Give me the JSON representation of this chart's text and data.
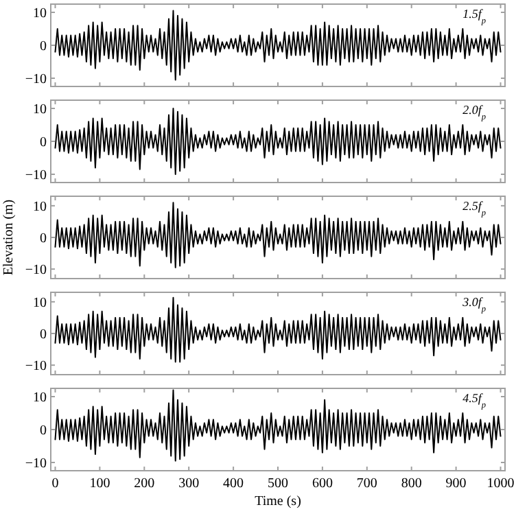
{
  "chart_data": [
    {
      "type": "line",
      "annotations": [
        "1.5f$_{p}$"
      ],
      "color": "#000000",
      "xlim": [
        -10,
        1010
      ],
      "ylim": [
        -12.5,
        12.5
      ],
      "xticks": [
        0,
        100,
        200,
        300,
        400,
        500,
        600,
        700,
        800,
        900,
        1000
      ],
      "yticks": [
        -10,
        0,
        10
      ],
      "tick_labels": "y",
      "x": [
        0,
        5,
        10,
        15,
        20,
        25,
        30,
        35,
        40,
        45,
        50,
        55,
        60,
        65,
        70,
        75,
        80,
        85,
        90,
        95,
        100,
        105,
        110,
        115,
        120,
        125,
        130,
        135,
        140,
        145,
        150,
        155,
        160,
        165,
        170,
        175,
        180,
        185,
        190,
        195,
        200,
        205,
        210,
        215,
        220,
        225,
        230,
        235,
        240,
        245,
        250,
        255,
        260,
        265,
        270,
        275,
        280,
        285,
        290,
        295,
        300,
        305,
        310,
        315,
        320,
        325,
        330,
        335,
        340,
        345,
        350,
        355,
        360,
        365,
        370,
        375,
        380,
        385,
        390,
        395,
        400,
        405,
        410,
        415,
        420,
        425,
        430,
        435,
        440,
        445,
        450,
        455,
        460,
        465,
        470,
        475,
        480,
        485,
        490,
        495,
        500,
        505,
        510,
        515,
        520,
        525,
        530,
        535,
        540,
        545,
        550,
        555,
        560,
        565,
        570,
        575,
        580,
        585,
        590,
        595,
        600,
        605,
        610,
        615,
        620,
        625,
        630,
        635,
        640,
        645,
        650,
        655,
        660,
        665,
        670,
        675,
        680,
        685,
        690,
        695,
        700,
        705,
        710,
        715,
        720,
        725,
        730,
        735,
        740,
        745,
        750,
        755,
        760,
        765,
        770,
        775,
        780,
        785,
        790,
        795,
        800,
        805,
        810,
        815,
        820,
        825,
        830,
        835,
        840,
        845,
        850,
        855,
        860,
        865,
        870,
        875,
        880,
        885,
        890,
        895,
        900,
        905,
        910,
        915,
        920,
        925,
        930,
        935,
        940,
        945,
        950,
        955,
        960,
        965,
        970,
        975,
        980,
        985,
        990,
        995,
        1000
      ],
      "values": [
        -2,
        5,
        -3,
        3,
        -3,
        3,
        -3.5,
        3,
        -3,
        3,
        -3.5,
        3.5,
        -3,
        4,
        -5,
        6,
        -6,
        7,
        -7,
        6,
        -5,
        7,
        -3,
        4,
        -4,
        4,
        -4,
        5,
        -5,
        5,
        -4,
        5,
        -5,
        4,
        -6,
        6,
        -6,
        6,
        -7.5,
        5,
        -4,
        3,
        -2,
        3,
        -2,
        2,
        -3,
        5,
        -4,
        4,
        -6,
        8,
        -8,
        10.5,
        -10.5,
        9,
        -9,
        8,
        -7,
        7,
        -5,
        4,
        -3,
        2,
        -2,
        1,
        -2,
        2,
        -1,
        3,
        -2,
        3,
        -3,
        2,
        -2,
        1,
        -1,
        1,
        -1,
        2,
        -1,
        2,
        -2,
        3,
        -2,
        1,
        -3,
        3,
        -3,
        2,
        -2,
        1,
        -1,
        4,
        -5,
        3,
        -3,
        5,
        -4,
        3,
        -2,
        1,
        -2,
        4,
        -4,
        3,
        -3,
        4,
        -3,
        4,
        -3,
        4,
        -3,
        3,
        -2,
        6,
        -5,
        6,
        -6,
        5,
        -6,
        7,
        -6,
        6,
        -4,
        5,
        -5,
        6,
        -6,
        5,
        -4,
        5,
        -5,
        6,
        -5,
        5,
        -4,
        5,
        -5,
        5,
        -4,
        5,
        -6,
        5,
        -4,
        6,
        -5,
        4,
        -3,
        3,
        -2,
        2,
        -1,
        2,
        -2,
        2,
        -2,
        3,
        -2,
        2,
        -3,
        3,
        -2,
        3,
        -3,
        4,
        -4,
        4,
        -3,
        5,
        -5,
        5,
        -4,
        4,
        -3,
        3,
        -3,
        5,
        -4,
        2,
        -2,
        3,
        -2,
        5,
        -4,
        3,
        -3,
        2,
        -1,
        2,
        -2,
        3,
        -3,
        2,
        -1,
        2,
        -5,
        4,
        -3,
        4,
        -2
      ]
    },
    {
      "type": "line",
      "annotations": [
        "2.0f$_{p}$"
      ],
      "color": "#000000",
      "xlim": [
        -10,
        1010
      ],
      "ylim": [
        -12.5,
        12.5
      ],
      "xticks": [
        0,
        100,
        200,
        300,
        400,
        500,
        600,
        700,
        800,
        900,
        1000
      ],
      "yticks": [
        -10,
        0,
        10
      ],
      "tick_labels": "y",
      "x": [
        0,
        5,
        10,
        15,
        20,
        25,
        30,
        35,
        40,
        45,
        50,
        55,
        60,
        65,
        70,
        75,
        80,
        85,
        90,
        95,
        100,
        105,
        110,
        115,
        120,
        125,
        130,
        135,
        140,
        145,
        150,
        155,
        160,
        165,
        170,
        175,
        180,
        185,
        190,
        195,
        200,
        205,
        210,
        215,
        220,
        225,
        230,
        235,
        240,
        245,
        250,
        255,
        260,
        265,
        270,
        275,
        280,
        285,
        290,
        295,
        300,
        305,
        310,
        315,
        320,
        325,
        330,
        335,
        340,
        345,
        350,
        355,
        360,
        365,
        370,
        375,
        380,
        385,
        390,
        395,
        400,
        405,
        410,
        415,
        420,
        425,
        430,
        435,
        440,
        445,
        450,
        455,
        460,
        465,
        470,
        475,
        480,
        485,
        490,
        495,
        500,
        505,
        510,
        515,
        520,
        525,
        530,
        535,
        540,
        545,
        550,
        555,
        560,
        565,
        570,
        575,
        580,
        585,
        590,
        595,
        600,
        605,
        610,
        615,
        620,
        625,
        630,
        635,
        640,
        645,
        650,
        655,
        660,
        665,
        670,
        675,
        680,
        685,
        690,
        695,
        700,
        705,
        710,
        715,
        720,
        725,
        730,
        735,
        740,
        745,
        750,
        755,
        760,
        765,
        770,
        775,
        780,
        785,
        790,
        795,
        800,
        805,
        810,
        815,
        820,
        825,
        830,
        835,
        840,
        845,
        850,
        855,
        860,
        865,
        870,
        875,
        880,
        885,
        890,
        895,
        900,
        905,
        910,
        915,
        920,
        925,
        930,
        935,
        940,
        945,
        950,
        955,
        960,
        965,
        970,
        975,
        980,
        985,
        990,
        995,
        1000
      ],
      "values": [
        -2,
        5,
        -3,
        3,
        -3,
        3,
        -3.5,
        3,
        -3,
        3,
        -3.5,
        3.5,
        -3,
        4,
        -5,
        6,
        -6,
        7,
        -8,
        6,
        -5,
        7,
        -3,
        4,
        -4,
        4,
        -4,
        5,
        -5,
        5,
        -4,
        5,
        -5,
        4,
        -6,
        6,
        -6,
        6,
        -8.5,
        5,
        -4,
        3,
        -2,
        3,
        -2,
        2,
        -3,
        5,
        -4,
        4,
        -6,
        8,
        -8,
        10,
        -10,
        9,
        -9,
        8,
        -8,
        7,
        -5,
        4,
        -3,
        2,
        -2,
        1,
        -2,
        2,
        -1,
        3,
        -2,
        3,
        -3,
        2,
        -2,
        1,
        -1,
        1,
        -1,
        2,
        -1,
        2,
        -2,
        3,
        -2,
        1,
        -3,
        3,
        -3,
        2,
        -2,
        1,
        -1,
        4,
        -5,
        3,
        -3,
        5,
        -4,
        3,
        -2,
        1,
        -2,
        4,
        -4,
        3,
        -3,
        4,
        -3,
        4,
        -3,
        4,
        -3,
        3,
        -2,
        6,
        -5,
        6,
        -6,
        5,
        -7,
        7,
        -6,
        6,
        -4,
        5,
        -5,
        6,
        -6,
        5,
        -4,
        5,
        -5,
        6,
        -5,
        5,
        -4,
        5,
        -5,
        5,
        -4,
        5,
        -6,
        5,
        -4,
        6,
        -5,
        4,
        -3,
        3,
        -2,
        2,
        -1,
        2,
        -2,
        2,
        -2,
        3,
        -2,
        2,
        -3,
        3,
        -2,
        3,
        -3,
        4,
        -4,
        4,
        -3,
        5,
        -6,
        5,
        -4,
        4,
        -3,
        3,
        -3,
        5,
        -4,
        2,
        -2,
        3,
        -2,
        5,
        -4,
        3,
        -3,
        2,
        -1,
        2,
        -2,
        3,
        -3,
        2,
        -1,
        2,
        -5,
        4,
        -3,
        4,
        -2
      ]
    },
    {
      "type": "line",
      "annotations": [
        "2.5f$_{p}$"
      ],
      "ylabel": "Elevation (m)",
      "color": "#000000",
      "xlim": [
        -10,
        1010
      ],
      "ylim": [
        -13,
        13
      ],
      "xticks": [
        0,
        100,
        200,
        300,
        400,
        500,
        600,
        700,
        800,
        900,
        1000
      ],
      "yticks": [
        -10,
        0,
        10
      ],
      "tick_labels": "y",
      "x": [
        0,
        5,
        10,
        15,
        20,
        25,
        30,
        35,
        40,
        45,
        50,
        55,
        60,
        65,
        70,
        75,
        80,
        85,
        90,
        95,
        100,
        105,
        110,
        115,
        120,
        125,
        130,
        135,
        140,
        145,
        150,
        155,
        160,
        165,
        170,
        175,
        180,
        185,
        190,
        195,
        200,
        205,
        210,
        215,
        220,
        225,
        230,
        235,
        240,
        245,
        250,
        255,
        260,
        265,
        270,
        275,
        280,
        285,
        290,
        295,
        300,
        305,
        310,
        315,
        320,
        325,
        330,
        335,
        340,
        345,
        350,
        355,
        360,
        365,
        370,
        375,
        380,
        385,
        390,
        395,
        400,
        405,
        410,
        415,
        420,
        425,
        430,
        435,
        440,
        445,
        450,
        455,
        460,
        465,
        470,
        475,
        480,
        485,
        490,
        495,
        500,
        505,
        510,
        515,
        520,
        525,
        530,
        535,
        540,
        545,
        550,
        555,
        560,
        565,
        570,
        575,
        580,
        585,
        590,
        595,
        600,
        605,
        610,
        615,
        620,
        625,
        630,
        635,
        640,
        645,
        650,
        655,
        660,
        665,
        670,
        675,
        680,
        685,
        690,
        695,
        700,
        705,
        710,
        715,
        720,
        725,
        730,
        735,
        740,
        745,
        750,
        755,
        760,
        765,
        770,
        775,
        780,
        785,
        790,
        795,
        800,
        805,
        810,
        815,
        820,
        825,
        830,
        835,
        840,
        845,
        850,
        855,
        860,
        865,
        870,
        875,
        880,
        885,
        890,
        895,
        900,
        905,
        910,
        915,
        920,
        925,
        930,
        935,
        940,
        945,
        950,
        955,
        960,
        965,
        970,
        975,
        980,
        985,
        990,
        995,
        1000
      ],
      "values": [
        -3,
        5.5,
        -3,
        3,
        -3,
        3,
        -3.5,
        3,
        -3,
        3,
        -3.5,
        3.5,
        -3,
        4,
        -5,
        6,
        -6,
        7,
        -8,
        6,
        -5,
        7,
        -3,
        4,
        -4,
        4,
        -4,
        5,
        -5,
        5,
        -4,
        5,
        -5,
        4,
        -6,
        6,
        -6,
        6,
        -9,
        5,
        -4,
        3,
        -2,
        3,
        -2,
        2,
        -3,
        5,
        -4,
        4,
        -6,
        8,
        -8,
        11,
        -9.5,
        9,
        -9,
        8,
        -8,
        7,
        -5,
        4,
        -3,
        2,
        -2,
        1,
        -2,
        2,
        -1,
        3,
        -2,
        3,
        -3,
        2,
        -2,
        1,
        -1,
        1,
        -1,
        2,
        -1,
        2,
        -2,
        3,
        -2,
        1,
        -3,
        3,
        -3,
        2,
        -2,
        1,
        -1,
        4,
        -6,
        3,
        -3,
        5,
        -4,
        3,
        -2,
        1,
        -2,
        4,
        -4,
        3,
        -3,
        4,
        -3,
        4,
        -3,
        4,
        -3,
        3,
        -2,
        6,
        -5,
        6,
        -6,
        5,
        -8,
        7,
        -6,
        6,
        -4,
        5,
        -5,
        6,
        -6,
        5,
        -4,
        5,
        -5,
        6,
        -5,
        5,
        -4,
        5,
        -5,
        5,
        -4,
        5,
        -6,
        5,
        -4,
        6,
        -5,
        4,
        -3,
        3,
        -2,
        2,
        -1,
        2,
        -2,
        2,
        -2,
        3,
        -2,
        2,
        -3,
        3,
        -2,
        3,
        -3,
        4,
        -4,
        4,
        -3,
        5,
        -7,
        5,
        -4,
        4,
        -3,
        3,
        -3,
        5,
        -4,
        2,
        -2,
        3,
        -2,
        5,
        -4,
        3,
        -3,
        2,
        -1,
        2,
        -2,
        3,
        -3,
        2,
        -1,
        2,
        -5.5,
        4,
        -3,
        4,
        -2
      ]
    },
    {
      "type": "line",
      "annotations": [
        "3.0f$_{p}$"
      ],
      "color": "#000000",
      "xlim": [
        -10,
        1010
      ],
      "ylim": [
        -13,
        13
      ],
      "xticks": [
        0,
        100,
        200,
        300,
        400,
        500,
        600,
        700,
        800,
        900,
        1000
      ],
      "yticks": [
        -10,
        0,
        10
      ],
      "tick_labels": "y",
      "x": [
        0,
        5,
        10,
        15,
        20,
        25,
        30,
        35,
        40,
        45,
        50,
        55,
        60,
        65,
        70,
        75,
        80,
        85,
        90,
        95,
        100,
        105,
        110,
        115,
        120,
        125,
        130,
        135,
        140,
        145,
        150,
        155,
        160,
        165,
        170,
        175,
        180,
        185,
        190,
        195,
        200,
        205,
        210,
        215,
        220,
        225,
        230,
        235,
        240,
        245,
        250,
        255,
        260,
        265,
        270,
        275,
        280,
        285,
        290,
        295,
        300,
        305,
        310,
        315,
        320,
        325,
        330,
        335,
        340,
        345,
        350,
        355,
        360,
        365,
        370,
        375,
        380,
        385,
        390,
        395,
        400,
        405,
        410,
        415,
        420,
        425,
        430,
        435,
        440,
        445,
        450,
        455,
        460,
        465,
        470,
        475,
        480,
        485,
        490,
        495,
        500,
        505,
        510,
        515,
        520,
        525,
        530,
        535,
        540,
        545,
        550,
        555,
        560,
        565,
        570,
        575,
        580,
        585,
        590,
        595,
        600,
        605,
        610,
        615,
        620,
        625,
        630,
        635,
        640,
        645,
        650,
        655,
        660,
        665,
        670,
        675,
        680,
        685,
        690,
        695,
        700,
        705,
        710,
        715,
        720,
        725,
        730,
        735,
        740,
        745,
        750,
        755,
        760,
        765,
        770,
        775,
        780,
        785,
        790,
        795,
        800,
        805,
        810,
        815,
        820,
        825,
        830,
        835,
        840,
        845,
        850,
        855,
        860,
        865,
        870,
        875,
        880,
        885,
        890,
        895,
        900,
        905,
        910,
        915,
        920,
        925,
        930,
        935,
        940,
        945,
        950,
        955,
        960,
        965,
        970,
        975,
        980,
        985,
        990,
        995,
        1000
      ],
      "values": [
        -3,
        5.5,
        -3,
        3,
        -3,
        3,
        -3.5,
        3,
        -3,
        3,
        -3.5,
        3.5,
        -3,
        4,
        -5,
        6,
        -6,
        7,
        -7.5,
        6,
        -5,
        7,
        -3,
        4,
        -4,
        4,
        -4,
        5,
        -5,
        5,
        -4,
        5,
        -5,
        4,
        -6,
        6,
        -6,
        6,
        -8,
        5,
        -4,
        3,
        -2,
        3,
        -2,
        2,
        -3,
        5,
        -4,
        4,
        -6,
        8,
        -8,
        11.3,
        -9,
        9,
        -9,
        8,
        -8,
        7,
        -5,
        4,
        -3,
        2,
        -2,
        1,
        -2,
        2,
        -1,
        3,
        -2,
        3,
        -3,
        2,
        -2,
        1,
        -1,
        1,
        -1,
        2,
        -1,
        2,
        -2,
        3,
        -2,
        1,
        -3,
        3,
        -3,
        2,
        -2,
        1,
        -1,
        4,
        -6,
        3,
        -3,
        5,
        -4,
        3,
        -2,
        1,
        -2,
        4,
        -4,
        3,
        -3,
        4,
        -3,
        4,
        -3,
        4,
        -3,
        3,
        -2,
        6,
        -5,
        6,
        -6,
        5,
        -8,
        7,
        -6,
        6,
        -4,
        5,
        -5,
        6,
        -6,
        5,
        -4,
        5,
        -5,
        6,
        -5,
        5,
        -4,
        5,
        -5,
        5,
        -4,
        5,
        -6,
        5,
        -4,
        6,
        -5,
        4,
        -3,
        3,
        -2,
        2,
        -1,
        2,
        -2,
        2,
        -2,
        3,
        -2,
        2,
        -3,
        3,
        -2,
        3,
        -3,
        4,
        -4,
        4,
        -3,
        5,
        -7,
        5,
        -4,
        4,
        -3,
        3,
        -3,
        5,
        -4,
        2,
        -2,
        3,
        -2,
        5,
        -4,
        3,
        -3,
        2,
        -1,
        2,
        -2,
        3,
        -3,
        2,
        -1,
        2,
        -5.5,
        4,
        -3,
        4,
        -2
      ]
    },
    {
      "type": "line",
      "annotations": [
        "4.5f$_{p}$"
      ],
      "xlabel": "Time (s)",
      "color": "#000000",
      "xlim": [
        -10,
        1010
      ],
      "ylim": [
        -12.5,
        12.5
      ],
      "xticks": [
        0,
        100,
        200,
        300,
        400,
        500,
        600,
        700,
        800,
        900,
        1000
      ],
      "yticks": [
        -10,
        0,
        10
      ],
      "x": [
        0,
        5,
        10,
        15,
        20,
        25,
        30,
        35,
        40,
        45,
        50,
        55,
        60,
        65,
        70,
        75,
        80,
        85,
        90,
        95,
        100,
        105,
        110,
        115,
        120,
        125,
        130,
        135,
        140,
        145,
        150,
        155,
        160,
        165,
        170,
        175,
        180,
        185,
        190,
        195,
        200,
        205,
        210,
        215,
        220,
        225,
        230,
        235,
        240,
        245,
        250,
        255,
        260,
        265,
        270,
        275,
        280,
        285,
        290,
        295,
        300,
        305,
        310,
        315,
        320,
        325,
        330,
        335,
        340,
        345,
        350,
        355,
        360,
        365,
        370,
        375,
        380,
        385,
        390,
        395,
        400,
        405,
        410,
        415,
        420,
        425,
        430,
        435,
        440,
        445,
        450,
        455,
        460,
        465,
        470,
        475,
        480,
        485,
        490,
        495,
        500,
        505,
        510,
        515,
        520,
        525,
        530,
        535,
        540,
        545,
        550,
        555,
        560,
        565,
        570,
        575,
        580,
        585,
        590,
        595,
        600,
        605,
        610,
        615,
        620,
        625,
        630,
        635,
        640,
        645,
        650,
        655,
        660,
        665,
        670,
        675,
        680,
        685,
        690,
        695,
        700,
        705,
        710,
        715,
        720,
        725,
        730,
        735,
        740,
        745,
        750,
        755,
        760,
        765,
        770,
        775,
        780,
        785,
        790,
        795,
        800,
        805,
        810,
        815,
        820,
        825,
        830,
        835,
        840,
        845,
        850,
        855,
        860,
        865,
        870,
        875,
        880,
        885,
        890,
        895,
        900,
        905,
        910,
        915,
        920,
        925,
        930,
        935,
        940,
        945,
        950,
        955,
        960,
        965,
        970,
        975,
        980,
        985,
        990,
        995,
        1000
      ],
      "values": [
        -3,
        6,
        -3,
        3,
        -3,
        3,
        -3.5,
        3,
        -3,
        3,
        -3.5,
        3.5,
        -3,
        4,
        -5,
        6,
        -6,
        7,
        -7.5,
        6,
        -5,
        7,
        -3,
        4,
        -4,
        4,
        -4,
        5,
        -5,
        5,
        -4,
        5,
        -5,
        4,
        -6,
        6,
        -6,
        6,
        -8.5,
        5,
        -4,
        3,
        -2,
        3,
        -2,
        2,
        -3,
        5,
        -4,
        4,
        -6,
        8,
        -8,
        12,
        -9.5,
        9,
        -9,
        8,
        -8,
        7,
        -5,
        4,
        -3,
        2,
        -2,
        1,
        -2,
        2,
        -1,
        3,
        -2,
        3,
        -3,
        2,
        -2,
        1,
        -1,
        1,
        -1,
        2,
        -1,
        2,
        -2,
        3,
        -2,
        1,
        -3,
        3,
        -3,
        2,
        -2,
        1,
        -1,
        4,
        -6,
        3,
        -3,
        5,
        -4,
        3,
        -2,
        1,
        -2,
        4,
        -4,
        3,
        -3,
        4,
        -3,
        4,
        -3,
        4,
        -3,
        3,
        -2,
        6,
        -5,
        6,
        -6,
        5,
        -7,
        9,
        -6,
        6,
        -4,
        5,
        -5,
        6,
        -6,
        5,
        -4,
        5,
        -5,
        6,
        -5,
        5,
        -4,
        5,
        -5,
        5,
        -4,
        5,
        -6,
        5,
        -4,
        6,
        -5,
        4,
        -3,
        3,
        -2,
        2,
        -1,
        2,
        -2,
        2,
        -2,
        3,
        -2,
        2,
        -3,
        3,
        -2,
        3,
        -3,
        4,
        -4,
        4,
        -3,
        5,
        -7,
        5,
        -4,
        4,
        -3,
        3,
        -3,
        5,
        -4,
        2,
        -2,
        3,
        -2,
        5,
        -4,
        3,
        -3,
        2,
        -1,
        2,
        -2,
        3,
        -3,
        2,
        -1,
        2,
        -5.5,
        4,
        -3,
        4,
        -2
      ]
    }
  ]
}
